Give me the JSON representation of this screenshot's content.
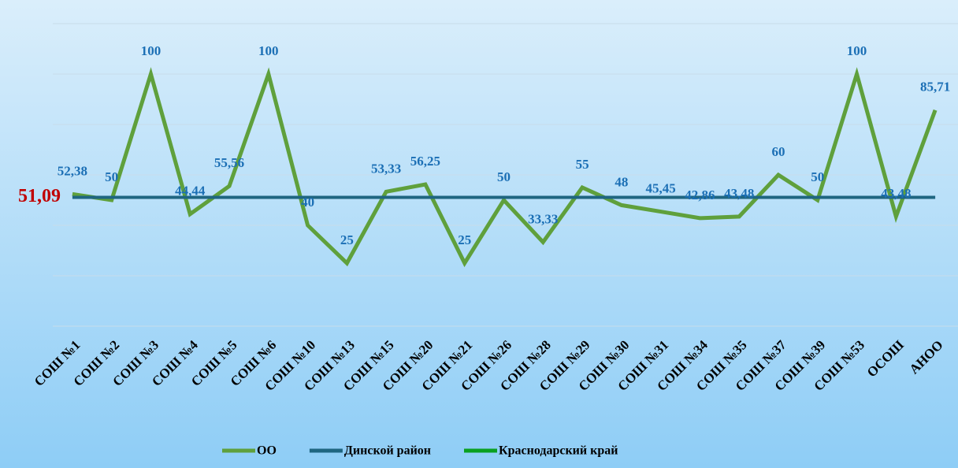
{
  "chart_data": {
    "type": "line",
    "categories": [
      "СОШ №1",
      "СОШ №2",
      "СОШ №3",
      "СОШ №4",
      "СОШ №5",
      "СОШ №6",
      "СОШ №10",
      "СОШ №13",
      "СОШ №15",
      "СОШ №20",
      "СОШ №21",
      "СОШ №26",
      "СОШ №28",
      "СОШ №29",
      "СОШ №30",
      "СОШ №31",
      "СОШ №34",
      "СОШ №35",
      "СОШ №37",
      "СОШ №39",
      "СОШ №53",
      "ОСОШ",
      "АНОО"
    ],
    "series": [
      {
        "name": "ОО",
        "color": "#5fa03c",
        "values": [
          52.38,
          50,
          100,
          44.44,
          55.56,
          100,
          40,
          25,
          53.33,
          56.25,
          25,
          50,
          33.33,
          55,
          48,
          45.45,
          42.86,
          43.48,
          60,
          50,
          100,
          43.48,
          85.71
        ],
        "value_labels": [
          "52,38",
          "50",
          "100",
          "44,44",
          "55,56",
          "100",
          "40",
          "25",
          "53,33",
          "56,25",
          "25",
          "50",
          "33,33",
          "55",
          "48",
          "45,45",
          "42,86",
          "43,48",
          "60",
          "50",
          "100",
          "43,48",
          "85,71"
        ]
      },
      {
        "name": "Динской район",
        "color": "#1f6681",
        "values": [
          51.09,
          51.09,
          51.09,
          51.09,
          51.09,
          51.09,
          51.09,
          51.09,
          51.09,
          51.09,
          51.09,
          51.09,
          51.09,
          51.09,
          51.09,
          51.09,
          51.09,
          51.09,
          51.09,
          51.09,
          51.09,
          51.09,
          51.09
        ],
        "value_labels": [
          "51,09",
          null,
          null,
          null,
          null,
          null,
          null,
          null,
          null,
          null,
          null,
          null,
          null,
          null,
          null,
          null,
          null,
          null,
          null,
          null,
          null,
          null,
          null
        ]
      },
      {
        "name": "Краснодарский край",
        "color": "#0aa020",
        "values": [
          null,
          null,
          null,
          null,
          null,
          null,
          null,
          null,
          null,
          null,
          null,
          null,
          null,
          null,
          null,
          null,
          null,
          null,
          null,
          null,
          null,
          null,
          null
        ]
      }
    ],
    "ylim": [
      0,
      120
    ],
    "yticks": [
      0,
      20,
      40,
      60,
      80,
      100,
      120
    ],
    "grid": true
  }
}
